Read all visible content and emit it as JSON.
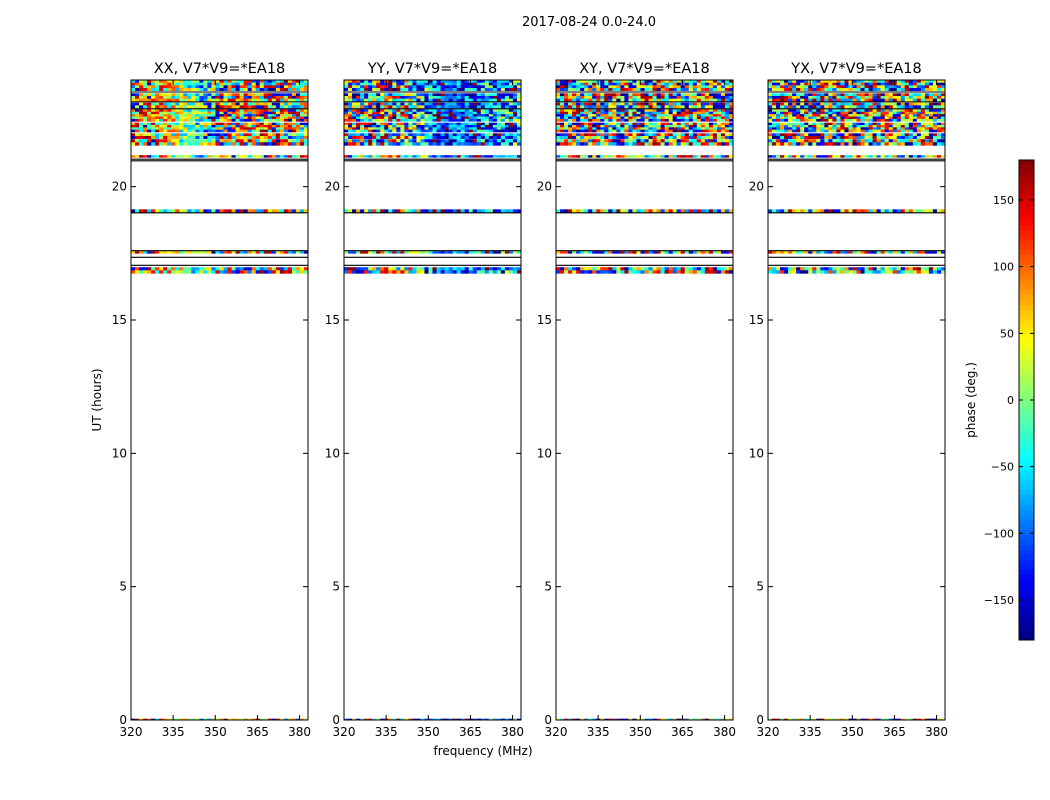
{
  "chart_data": {
    "type": "heatmap",
    "title": "2017-08-24 0.0-24.0",
    "xlabel": "frequency (MHz)",
    "ylabel": "UT (hours)",
    "xlim": [
      320,
      383
    ],
    "ylim": [
      0,
      24
    ],
    "xticks": [
      320,
      335,
      350,
      365,
      380
    ],
    "yticks": [
      0,
      5,
      10,
      15,
      20
    ],
    "colormap": "jet",
    "colorbar": {
      "label": "phase (deg.)",
      "range": [
        -180,
        180
      ],
      "ticks": [
        150,
        100,
        50,
        0,
        -50,
        -100,
        -150
      ]
    },
    "panels": [
      {
        "title": "XX, V7*V9=*EA18",
        "pattern": "parallel",
        "hue": [
          [
            0.0,
            0.8,
            0.45
          ],
          [
            0.35,
            0.45,
            0.2
          ],
          [
            0.6,
            0.25,
            0.7
          ],
          [
            1.0,
            0.7,
            0.4
          ]
        ]
      },
      {
        "title": "YY, V7*V9=*EA18",
        "pattern": "parallel",
        "hue": [
          [
            0.0,
            0.85,
            0.5
          ],
          [
            0.3,
            0.6,
            0.5
          ],
          [
            0.55,
            0.15,
            0.2
          ],
          [
            1.0,
            0.3,
            0.35
          ]
        ]
      },
      {
        "title": "XY, V7*V9=*EA18",
        "pattern": "cross"
      },
      {
        "title": "YX, V7*V9=*EA18",
        "pattern": "cross"
      }
    ],
    "data_bands_ut": [
      [
        23.6,
        24.0
      ],
      [
        23.2,
        23.5
      ],
      [
        22.95,
        23.15
      ],
      [
        22.45,
        22.9
      ],
      [
        22.05,
        22.4
      ],
      [
        21.8,
        22.0
      ],
      [
        21.55,
        21.78
      ],
      [
        21.1,
        21.18
      ],
      [
        19.02,
        19.15
      ],
      [
        17.5,
        17.58
      ],
      [
        16.75,
        16.98
      ],
      [
        0.0,
        0.05
      ]
    ],
    "line_ut": [
      23.55,
      23.18,
      22.92,
      21.03,
      20.97,
      19.02,
      17.6,
      17.35,
      17.05
    ]
  }
}
